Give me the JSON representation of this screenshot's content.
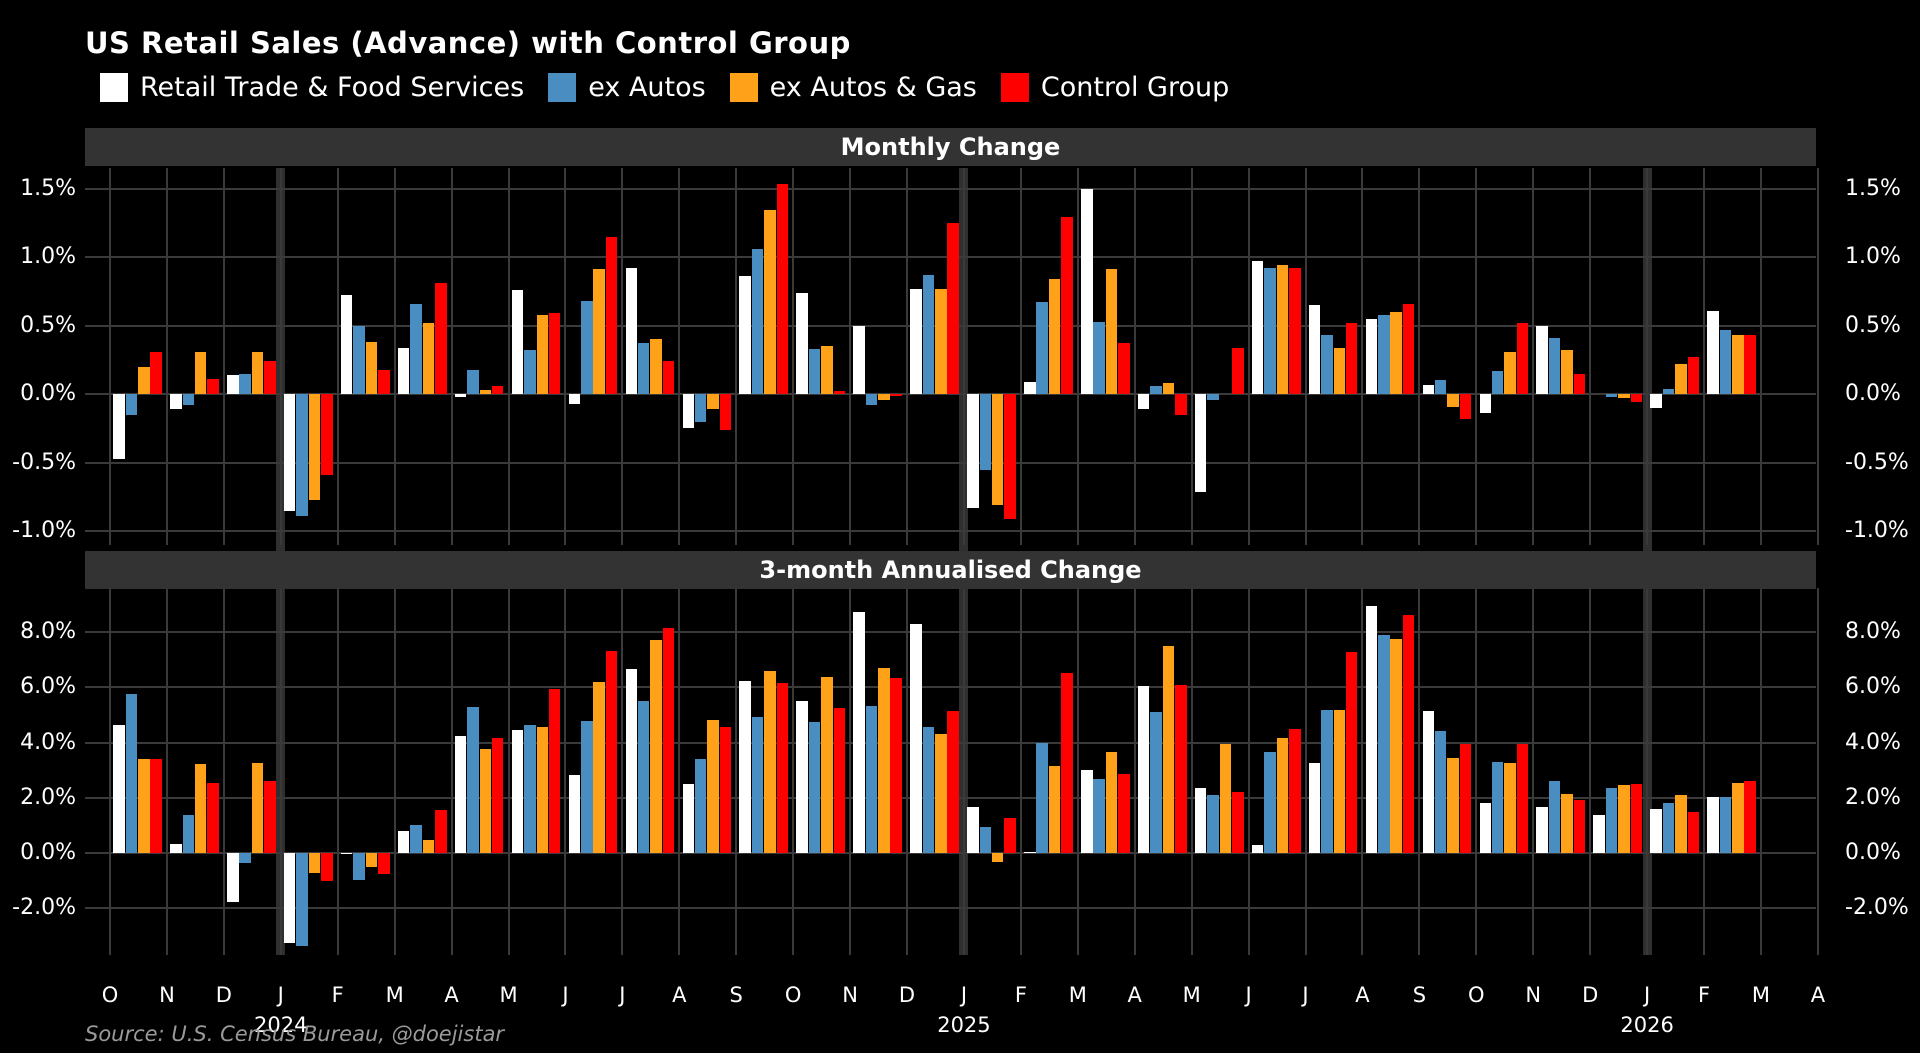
{
  "title": "US Retail Sales (Advance) with Control Group",
  "source": "Source: U.S. Census Bureau, @doejistar",
  "colors": {
    "background": "#000000",
    "panel_header_bg": "#333333",
    "gridline": "#3a3a3a",
    "year_separator": "#2f2f2f",
    "text": "#ffffff",
    "source_text": "#9a9a9a"
  },
  "legend": [
    {
      "label": "Retail Trade & Food Services",
      "color": "#ffffff"
    },
    {
      "label": "ex Autos",
      "color": "#4a8dc0"
    },
    {
      "label": "ex Autos & Gas",
      "color": "#ffa21a"
    },
    {
      "label": "Control Group",
      "color": "#ff0000"
    }
  ],
  "x_axis": {
    "months": [
      "O",
      "N",
      "D",
      "J",
      "F",
      "M",
      "A",
      "M",
      "J",
      "J",
      "A",
      "S",
      "O",
      "N",
      "D",
      "J",
      "F",
      "M",
      "A",
      "M",
      "J",
      "J",
      "A",
      "S",
      "O",
      "N",
      "D",
      "J",
      "F",
      "M",
      "A"
    ],
    "years": [
      {
        "label": "2024",
        "index": 3
      },
      {
        "label": "2025",
        "index": 15
      },
      {
        "label": "2026",
        "index": 27
      }
    ],
    "year_separator_indices": [
      3,
      15,
      27
    ]
  },
  "chart_data": [
    {
      "type": "bar",
      "title": "Monthly Change",
      "ylabel": "%",
      "ylim": [
        -1.1,
        1.65
      ],
      "grid": true,
      "yticks": [
        {
          "v": 1.5,
          "label": "1.5%"
        },
        {
          "v": 1.0,
          "label": "1.0%"
        },
        {
          "v": 0.5,
          "label": "0.5%"
        },
        {
          "v": 0.0,
          "label": "0.0%"
        },
        {
          "v": -0.5,
          "label": "-0.5%"
        },
        {
          "v": -1.0,
          "label": "-1.0%"
        }
      ],
      "categories": [
        "Oct 2023",
        "Nov 2023",
        "Dec 2023",
        "Jan 2024",
        "Feb 2024",
        "Mar 2024",
        "Apr 2024",
        "May 2024",
        "Jun 2024",
        "Jul 2024",
        "Aug 2024",
        "Sep 2024",
        "Oct 2024",
        "Nov 2024",
        "Dec 2024",
        "Jan 2025",
        "Feb 2025",
        "Mar 2025",
        "Apr 2025",
        "May 2025",
        "Jun 2025",
        "Jul 2025",
        "Aug 2025",
        "Sep 2025",
        "Oct 2025",
        "Nov 2025",
        "Dec 2025",
        "Jan 2026",
        "Feb 2026",
        "Mar 2026",
        "Apr 2026"
      ],
      "series": [
        {
          "name": "Retail Trade & Food Services",
          "color": "#ffffff",
          "values": [
            -0.47,
            -0.11,
            0.14,
            -0.85,
            0.72,
            0.34,
            -0.02,
            0.76,
            -0.07,
            0.92,
            -0.25,
            0.86,
            0.74,
            0.5,
            0.77,
            -0.83,
            0.09,
            1.5,
            -0.11,
            -0.71,
            0.97,
            0.65,
            0.55,
            0.07,
            -0.14,
            0.5,
            0.0,
            -0.1,
            0.61,
            null,
            null
          ]
        },
        {
          "name": "ex Autos",
          "color": "#4a8dc0",
          "values": [
            -0.15,
            -0.08,
            0.15,
            -0.89,
            0.5,
            0.66,
            0.18,
            0.32,
            0.68,
            0.37,
            -0.2,
            1.06,
            0.33,
            -0.08,
            0.87,
            -0.55,
            0.67,
            0.53,
            0.06,
            -0.04,
            0.92,
            0.43,
            0.58,
            0.1,
            0.17,
            0.41,
            -0.02,
            0.04,
            0.47,
            null,
            null
          ]
        },
        {
          "name": "ex Autos & Gas",
          "color": "#ffa21a",
          "values": [
            0.2,
            0.31,
            0.31,
            -0.77,
            0.38,
            0.52,
            0.03,
            0.58,
            0.91,
            0.4,
            -0.11,
            1.34,
            0.35,
            -0.04,
            0.77,
            -0.81,
            0.84,
            0.91,
            0.08,
            0.0,
            0.94,
            0.34,
            0.6,
            -0.09,
            0.31,
            0.32,
            -0.03,
            0.22,
            0.43,
            null,
            null
          ]
        },
        {
          "name": "Control Group",
          "color": "#ff0000",
          "values": [
            0.31,
            0.11,
            0.24,
            -0.59,
            0.18,
            0.81,
            0.06,
            0.59,
            1.15,
            0.24,
            -0.26,
            1.53,
            0.02,
            -0.01,
            1.25,
            -0.91,
            1.29,
            0.37,
            -0.15,
            0.34,
            0.92,
            0.52,
            0.66,
            -0.18,
            0.52,
            0.15,
            -0.06,
            0.27,
            0.43,
            null,
            null
          ]
        }
      ]
    },
    {
      "type": "bar",
      "title": "3-month Annualised Change",
      "ylabel": "%",
      "ylim": [
        -3.7,
        9.6
      ],
      "grid": true,
      "yticks": [
        {
          "v": 8.0,
          "label": "8.0%"
        },
        {
          "v": 6.0,
          "label": "6.0%"
        },
        {
          "v": 4.0,
          "label": "4.0%"
        },
        {
          "v": 2.0,
          "label": "2.0%"
        },
        {
          "v": 0.0,
          "label": "0.0%"
        },
        {
          "v": -2.0,
          "label": "-2.0%"
        }
      ],
      "categories": [
        "Oct 2023",
        "Nov 2023",
        "Dec 2023",
        "Jan 2024",
        "Feb 2024",
        "Mar 2024",
        "Apr 2024",
        "May 2024",
        "Jun 2024",
        "Jul 2024",
        "Aug 2024",
        "Sep 2024",
        "Oct 2024",
        "Nov 2024",
        "Dec 2024",
        "Jan 2025",
        "Feb 2025",
        "Mar 2025",
        "Apr 2025",
        "May 2025",
        "Jun 2025",
        "Jul 2025",
        "Aug 2025",
        "Sep 2025",
        "Oct 2025",
        "Nov 2025",
        "Dec 2025",
        "Jan 2026",
        "Feb 2026",
        "Mar 2026",
        "Apr 2026"
      ],
      "series": [
        {
          "name": "Retail Trade & Food Services",
          "color": "#ffffff",
          "values": [
            4.63,
            0.33,
            -1.78,
            -3.27,
            -0.05,
            0.81,
            4.24,
            4.46,
            2.81,
            6.67,
            2.48,
            6.22,
            5.49,
            8.73,
            8.28,
            1.66,
            0.05,
            2.99,
            6.06,
            2.36,
            0.27,
            3.27,
            8.93,
            5.13,
            1.82,
            1.66,
            1.39,
            1.6,
            2.02,
            null,
            null
          ]
        },
        {
          "name": "ex Autos",
          "color": "#4a8dc0",
          "values": [
            5.76,
            1.37,
            -0.36,
            -3.36,
            -1.0,
            1.01,
            5.3,
            4.63,
            4.79,
            5.52,
            3.39,
            4.91,
            4.76,
            5.33,
            4.55,
            0.93,
            4.0,
            2.67,
            5.09,
            2.1,
            3.64,
            5.19,
            7.9,
            4.42,
            3.3,
            2.61,
            2.34,
            1.8,
            2.02,
            null,
            null
          ]
        },
        {
          "name": "ex Autos & Gas",
          "color": "#ffa21a",
          "values": [
            3.42,
            3.21,
            3.27,
            -0.73,
            -0.52,
            0.45,
            3.76,
            4.57,
            6.18,
            7.72,
            4.81,
            6.58,
            6.36,
            6.69,
            4.3,
            -0.33,
            3.15,
            3.64,
            7.48,
            3.94,
            4.15,
            5.19,
            7.76,
            3.45,
            3.27,
            2.15,
            2.45,
            2.09,
            2.54,
            null,
            null
          ]
        },
        {
          "name": "Control Group",
          "color": "#ff0000",
          "values": [
            3.42,
            2.55,
            2.6,
            -1.03,
            -0.76,
            1.54,
            4.18,
            5.94,
            7.33,
            8.16,
            4.57,
            6.16,
            5.24,
            6.33,
            5.13,
            1.27,
            6.51,
            2.85,
            6.08,
            2.22,
            4.48,
            7.27,
            8.61,
            3.96,
            3.96,
            1.9,
            2.48,
            1.47,
            2.6,
            null,
            null
          ]
        }
      ]
    }
  ]
}
